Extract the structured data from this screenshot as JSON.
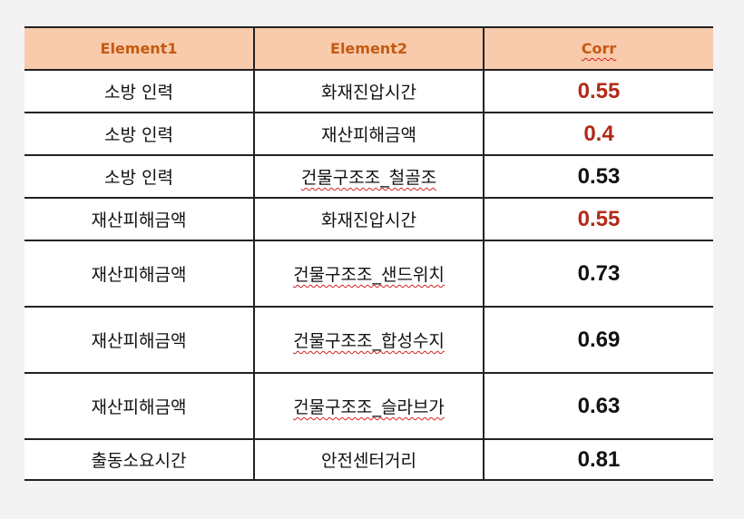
{
  "table": {
    "headers": [
      "Element1",
      "Element2",
      "Corr"
    ],
    "rows": [
      {
        "element1": "소방 인력",
        "element2": "화재진압시간",
        "corr": "0.55",
        "highlight": true
      },
      {
        "element1": "소방 인력",
        "element2": "재산피해금액",
        "corr": "0.4",
        "highlight": true
      },
      {
        "element1": "소방 인력",
        "element2": "건물구조조_철골조",
        "corr": "0.53",
        "highlight": false
      },
      {
        "element1": "재산피해금액",
        "element2": "화재진압시간",
        "corr": "0.55",
        "highlight": true
      },
      {
        "element1": "재산피해금액",
        "element2": "건물구조조_샌드위치",
        "corr": "0.73",
        "highlight": false
      },
      {
        "element1": "재산피해금액",
        "element2": "건물구조조_합성수지",
        "corr": "0.69",
        "highlight": false
      },
      {
        "element1": "재산피해금액",
        "element2": "건물구조조_슬라브가",
        "corr": "0.63",
        "highlight": false
      },
      {
        "element1": "출동소요시간",
        "element2": "안전센터거리",
        "corr": "0.81",
        "highlight": false
      }
    ]
  },
  "colors": {
    "header_bg": "#f8cbad",
    "header_text": "#c55a11",
    "highlight_value": "#b22a18",
    "page_bg": "#f3f3f3"
  }
}
